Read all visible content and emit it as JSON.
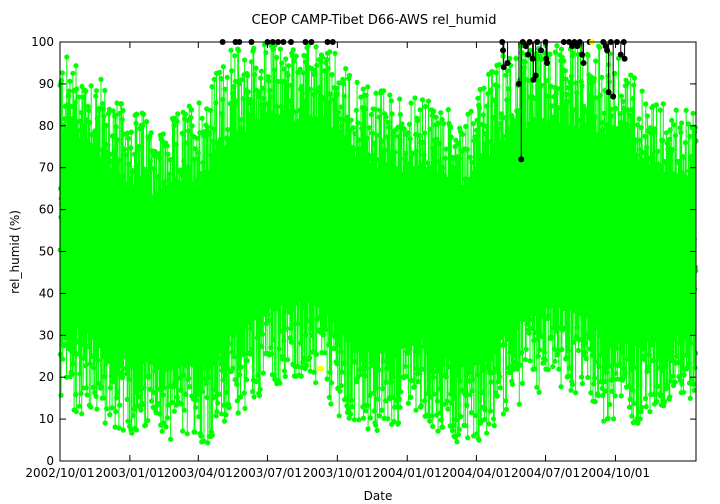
{
  "chart_data": {
    "type": "scatter",
    "title": "CEOP  CAMP-Tibet D66-AWS  rel_humid",
    "xlabel": "Date",
    "ylabel": "rel_humid (%)",
    "xlim": [
      "2002-10-01",
      "2005-01-15"
    ],
    "ylim": [
      0,
      100
    ],
    "yticks": [
      0,
      10,
      20,
      30,
      40,
      50,
      60,
      70,
      80,
      90,
      100
    ],
    "xticks": [
      "2002/10/01",
      "2003/01/01",
      "2003/04/01",
      "2003/07/01",
      "2003/10/01",
      "2004/01/01",
      "2004/04/01",
      "2004/07/01",
      "2004/10/01"
    ],
    "grid": false,
    "legend": "none",
    "colors": {
      "main": "#00ff00",
      "flagged": "#000000",
      "interpolated": "#ffff00"
    },
    "series": [
      {
        "description_key": "main_green",
        "color": "#00ff00",
        "marker": "circle-with-connecting-line",
        "envelope_monthly": [
          {
            "month": "2002-10",
            "min": 12,
            "max": 97
          },
          {
            "month": "2002-11",
            "min": 10,
            "max": 94
          },
          {
            "month": "2002-12",
            "min": 7,
            "max": 86
          },
          {
            "month": "2003-01",
            "min": 6,
            "max": 84
          },
          {
            "month": "2003-02",
            "min": 5,
            "max": 80
          },
          {
            "month": "2003-03",
            "min": 5,
            "max": 85
          },
          {
            "month": "2003-04",
            "min": 4,
            "max": 90
          },
          {
            "month": "2003-05",
            "min": 8,
            "max": 99
          },
          {
            "month": "2003-06",
            "min": 15,
            "max": 100
          },
          {
            "month": "2003-07",
            "min": 18,
            "max": 100
          },
          {
            "month": "2003-08",
            "min": 20,
            "max": 100
          },
          {
            "month": "2003-09",
            "min": 15,
            "max": 100
          },
          {
            "month": "2003-10",
            "min": 8,
            "max": 94
          },
          {
            "month": "2003-11",
            "min": 6,
            "max": 90
          },
          {
            "month": "2003-12",
            "min": 8,
            "max": 88
          },
          {
            "month": "2004-01",
            "min": 12,
            "max": 87
          },
          {
            "month": "2004-02",
            "min": 6,
            "max": 85
          },
          {
            "month": "2004-03",
            "min": 4,
            "max": 84
          },
          {
            "month": "2004-04",
            "min": 5,
            "max": 92
          },
          {
            "month": "2004-05",
            "min": 10,
            "max": 100
          },
          {
            "month": "2004-06",
            "min": 15,
            "max": 100
          },
          {
            "month": "2004-07",
            "min": 18,
            "max": 100
          },
          {
            "month": "2004-08",
            "min": 15,
            "max": 100
          },
          {
            "month": "2004-09",
            "min": 8,
            "max": 100
          },
          {
            "month": "2004-10",
            "min": 8,
            "max": 95
          },
          {
            "month": "2004-11",
            "min": 10,
            "max": 88
          },
          {
            "month": "2004-12",
            "min": 12,
            "max": 85
          },
          {
            "month": "2005-01",
            "min": 14,
            "max": 84
          }
        ]
      },
      {
        "description_key": "flagged_black",
        "color": "#000000",
        "marker": "circle",
        "points": [
          {
            "x": "2003-05-03",
            "y": 100
          },
          {
            "x": "2003-05-20",
            "y": 100
          },
          {
            "x": "2003-05-25",
            "y": 100
          },
          {
            "x": "2003-06-10",
            "y": 100
          },
          {
            "x": "2003-07-01",
            "y": 100
          },
          {
            "x": "2003-07-08",
            "y": 100
          },
          {
            "x": "2003-07-15",
            "y": 100
          },
          {
            "x": "2003-07-22",
            "y": 100
          },
          {
            "x": "2003-08-01",
            "y": 100
          },
          {
            "x": "2003-08-20",
            "y": 100
          },
          {
            "x": "2003-08-28",
            "y": 100
          },
          {
            "x": "2003-09-18",
            "y": 100
          },
          {
            "x": "2003-09-25",
            "y": 100
          },
          {
            "x": "2004-05-05",
            "y": 100
          },
          {
            "x": "2004-05-06",
            "y": 98
          },
          {
            "x": "2004-05-07",
            "y": 94
          },
          {
            "x": "2004-05-12",
            "y": 95
          },
          {
            "x": "2004-05-27",
            "y": 90
          },
          {
            "x": "2004-05-30",
            "y": 72
          },
          {
            "x": "2004-06-01",
            "y": 100
          },
          {
            "x": "2004-06-05",
            "y": 99
          },
          {
            "x": "2004-06-08",
            "y": 97
          },
          {
            "x": "2004-06-10",
            "y": 100
          },
          {
            "x": "2004-06-14",
            "y": 96
          },
          {
            "x": "2004-06-15",
            "y": 91
          },
          {
            "x": "2004-06-18",
            "y": 92
          },
          {
            "x": "2004-06-20",
            "y": 100
          },
          {
            "x": "2004-06-25",
            "y": 98
          },
          {
            "x": "2004-07-01",
            "y": 100
          },
          {
            "x": "2004-07-02",
            "y": 96
          },
          {
            "x": "2004-07-03",
            "y": 95
          },
          {
            "x": "2004-07-25",
            "y": 100
          },
          {
            "x": "2004-08-01",
            "y": 100
          },
          {
            "x": "2004-08-05",
            "y": 99
          },
          {
            "x": "2004-08-08",
            "y": 100
          },
          {
            "x": "2004-08-12",
            "y": 99
          },
          {
            "x": "2004-08-15",
            "y": 100
          },
          {
            "x": "2004-08-18",
            "y": 97
          },
          {
            "x": "2004-08-20",
            "y": 95
          },
          {
            "x": "2004-08-28",
            "y": 100
          },
          {
            "x": "2004-09-15",
            "y": 100
          },
          {
            "x": "2004-09-18",
            "y": 99
          },
          {
            "x": "2004-09-20",
            "y": 98
          },
          {
            "x": "2004-09-22",
            "y": 88
          },
          {
            "x": "2004-09-25",
            "y": 100
          },
          {
            "x": "2004-09-28",
            "y": 87
          },
          {
            "x": "2004-10-03",
            "y": 100
          },
          {
            "x": "2004-10-08",
            "y": 97
          },
          {
            "x": "2004-10-12",
            "y": 100
          },
          {
            "x": "2004-10-13",
            "y": 96
          }
        ]
      },
      {
        "description_key": "interpolated_yellow",
        "color": "#ffff00",
        "marker": "circle",
        "points": [
          {
            "x": "2003-09-08",
            "y": 22
          },
          {
            "x": "2003-09-10",
            "y": 22
          },
          {
            "x": "2004-08-31",
            "y": 100
          }
        ]
      }
    ]
  }
}
